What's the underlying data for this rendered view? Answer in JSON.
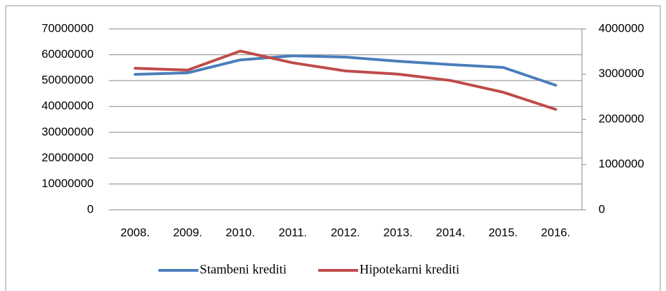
{
  "chart_data": {
    "type": "line",
    "categories": [
      "2008.",
      "2009.",
      "2010.",
      "2011.",
      "2012.",
      "2013.",
      "2014.",
      "2015.",
      "2016."
    ],
    "series": [
      {
        "name": "Stambeni krediti",
        "color": "#4a7ebb",
        "values": [
          52400000,
          53000000,
          58000000,
          59600000,
          59100000,
          57500000,
          56200000,
          55100000,
          48200000
        ]
      },
      {
        "name": "Hipotekarni krediti",
        "color": "#be4b48",
        "axis": "y2",
        "values": [
          3130000,
          3090000,
          3510000,
          3250000,
          3070000,
          3000000,
          2860000,
          2600000,
          2220000
        ]
      }
    ],
    "ylim": [
      0,
      70000000
    ],
    "yticks": [
      0,
      10000000,
      20000000,
      30000000,
      40000000,
      50000000,
      60000000,
      70000000
    ],
    "y2lim": [
      0,
      4000000
    ],
    "y2ticks": [
      0,
      1000000,
      2000000,
      3000000,
      4000000
    ],
    "grid": true,
    "legend": "bottom"
  }
}
